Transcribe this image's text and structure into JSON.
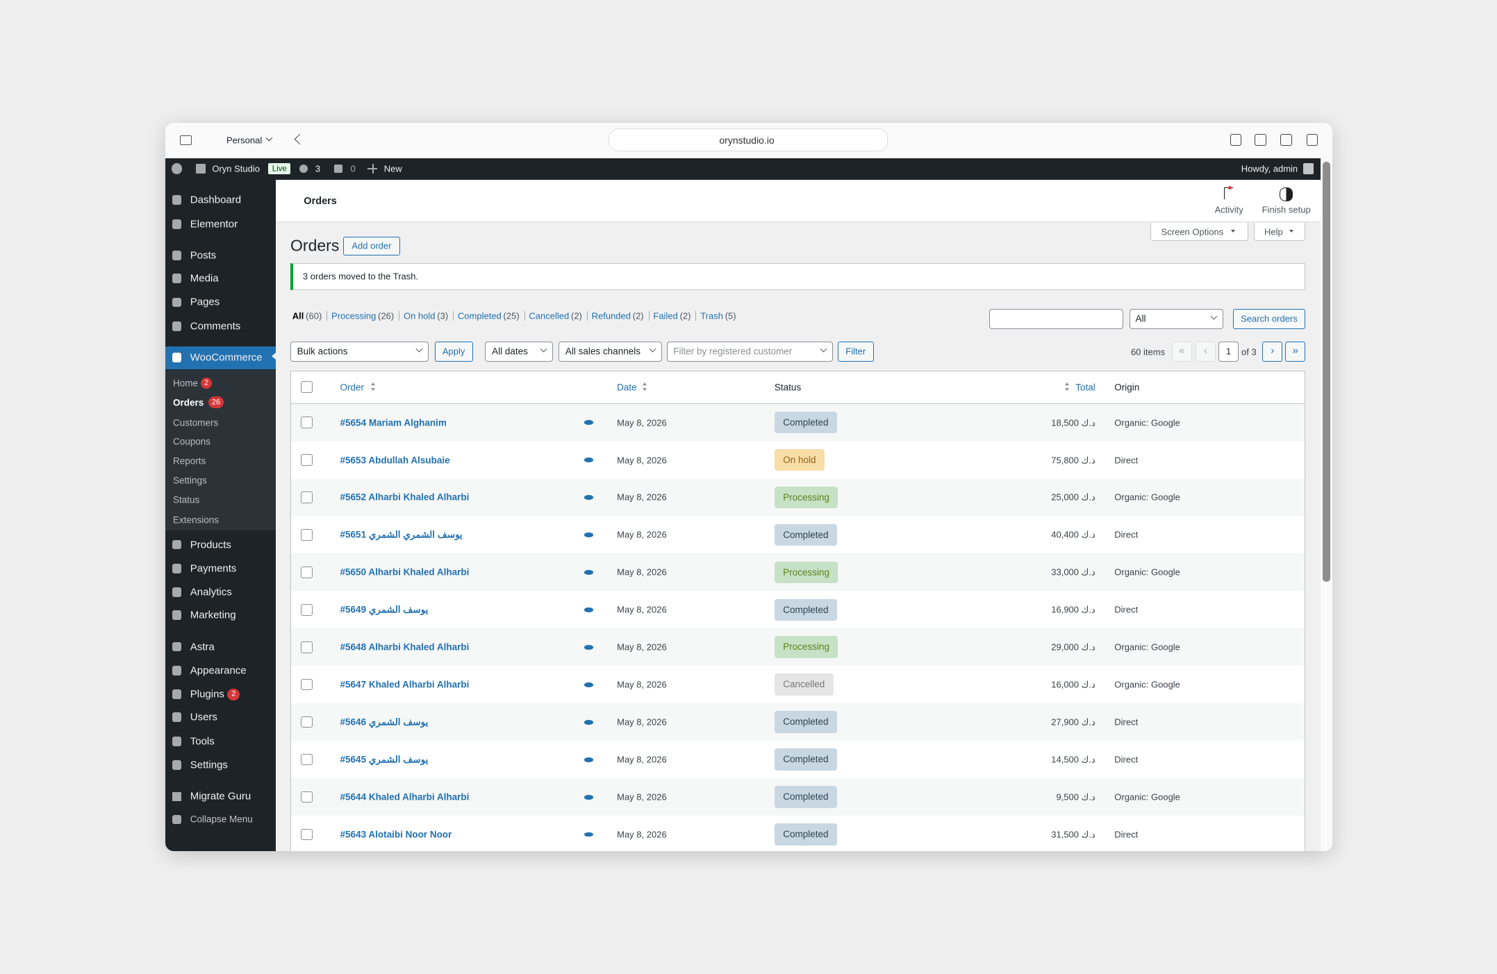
{
  "browser": {
    "profile": "Personal",
    "url": "orynstudio.io"
  },
  "admin_bar": {
    "site": "Oryn Studio",
    "live": "Live",
    "updates": "3",
    "comments": "0",
    "new": "New",
    "howdy": "Howdy, admin"
  },
  "menu": [
    {
      "label": "Dashboard"
    },
    {
      "label": "Elementor"
    },
    {
      "label": "Posts"
    },
    {
      "label": "Media"
    },
    {
      "label": "Pages"
    },
    {
      "label": "Comments"
    },
    {
      "label": "WooCommerce"
    },
    {
      "label": "Products"
    },
    {
      "label": "Payments"
    },
    {
      "label": "Analytics"
    },
    {
      "label": "Marketing"
    },
    {
      "label": "Astra"
    },
    {
      "label": "Appearance"
    },
    {
      "label": "Plugins",
      "badge": "2"
    },
    {
      "label": "Users"
    },
    {
      "label": "Tools"
    },
    {
      "label": "Settings"
    },
    {
      "label": "Migrate Guru"
    },
    {
      "label": "Collapse Menu"
    }
  ],
  "submenu": [
    {
      "label": "Home",
      "badge": "2"
    },
    {
      "label": "Orders",
      "badge": "26"
    },
    {
      "label": "Customers"
    },
    {
      "label": "Coupons"
    },
    {
      "label": "Reports"
    },
    {
      "label": "Settings"
    },
    {
      "label": "Status"
    },
    {
      "label": "Extensions"
    }
  ],
  "header": {
    "title": "Orders",
    "activity": "Activity",
    "finish": "Finish setup"
  },
  "page": {
    "title": "Orders",
    "add_order": "Add order",
    "screen_options": "Screen Options",
    "help": "Help",
    "notice": "3 orders moved to the Trash."
  },
  "views": [
    {
      "label": "All",
      "count": "(60)"
    },
    {
      "label": "Processing",
      "count": "(26)"
    },
    {
      "label": "On hold",
      "count": "(3)"
    },
    {
      "label": "Completed",
      "count": "(25)"
    },
    {
      "label": "Cancelled",
      "count": "(2)"
    },
    {
      "label": "Refunded",
      "count": "(2)"
    },
    {
      "label": "Failed",
      "count": "(2)"
    },
    {
      "label": "Trash",
      "count": "(5)"
    }
  ],
  "search": {
    "select": "All",
    "button": "Search orders"
  },
  "filters": {
    "bulk": "Bulk actions",
    "apply": "Apply",
    "dates": "All dates",
    "channels": "All sales channels",
    "customer": "Filter by registered customer",
    "filter": "Filter"
  },
  "pagination": {
    "items": "60 items",
    "first": "«",
    "prev": "‹",
    "current": "1",
    "of": "of 3",
    "next": "›",
    "last": "»"
  },
  "table": {
    "headers": {
      "order": "Order",
      "date": "Date",
      "status": "Status",
      "total": "Total",
      "origin": "Origin"
    },
    "rows": [
      {
        "order": "#5654 Mariam Alghanim",
        "date": "May 8, 2026",
        "status": {
          "label": "Completed",
          "bg": "#c8d7e1",
          "fg": "#2e4453"
        },
        "total": "18,500 د.ك",
        "origin": "Organic: Google"
      },
      {
        "order": "#5653 Abdullah Alsubaie",
        "date": "May 8, 2026",
        "status": {
          "label": "On hold",
          "bg": "#f8dda7",
          "fg": "#94660c"
        },
        "total": "75,800 د.ك",
        "origin": "Direct"
      },
      {
        "order": "#5652 Alharbi Khaled Alharbi",
        "date": "May 8, 2026",
        "status": {
          "label": "Processing",
          "bg": "#c6e1c6",
          "fg": "#5b841b"
        },
        "total": "25,000 د.ك",
        "origin": "Organic: Google"
      },
      {
        "order": "#5651 يوسف الشمري الشمري",
        "date": "May 8, 2026",
        "status": {
          "label": "Completed",
          "bg": "#c8d7e1",
          "fg": "#2e4453"
        },
        "total": "40,400 د.ك",
        "origin": "Direct"
      },
      {
        "order": "#5650 Alharbi Khaled Alharbi",
        "date": "May 8, 2026",
        "status": {
          "label": "Processing",
          "bg": "#c6e1c6",
          "fg": "#5b841b"
        },
        "total": "33,000 د.ك",
        "origin": "Organic: Google"
      },
      {
        "order": "#5649 يوسف الشمري",
        "date": "May 8, 2026",
        "status": {
          "label": "Completed",
          "bg": "#c8d7e1",
          "fg": "#2e4453"
        },
        "total": "16,900 د.ك",
        "origin": "Direct"
      },
      {
        "order": "#5648 Alharbi Khaled Alharbi",
        "date": "May 8, 2026",
        "status": {
          "label": "Processing",
          "bg": "#c6e1c6",
          "fg": "#5b841b"
        },
        "total": "29,000 د.ك",
        "origin": "Organic: Google"
      },
      {
        "order": "#5647 Khaled Alharbi Alharbi",
        "date": "May 8, 2026",
        "status": {
          "label": "Cancelled",
          "bg": "#e5e5e5",
          "fg": "#777777"
        },
        "total": "16,000 د.ك",
        "origin": "Organic: Google"
      },
      {
        "order": "#5646 يوسف الشمري",
        "date": "May 8, 2026",
        "status": {
          "label": "Completed",
          "bg": "#c8d7e1",
          "fg": "#2e4453"
        },
        "total": "27,900 د.ك",
        "origin": "Direct"
      },
      {
        "order": "#5645 يوسف الشمري",
        "date": "May 8, 2026",
        "status": {
          "label": "Completed",
          "bg": "#c8d7e1",
          "fg": "#2e4453"
        },
        "total": "14,500 د.ك",
        "origin": "Direct"
      },
      {
        "order": "#5644 Khaled Alharbi Alharbi",
        "date": "May 8, 2026",
        "status": {
          "label": "Completed",
          "bg": "#c8d7e1",
          "fg": "#2e4453"
        },
        "total": "9,500 د.ك",
        "origin": "Organic: Google"
      },
      {
        "order": "#5643 Alotaibi Noor Noor",
        "date": "May 8, 2026",
        "status": {
          "label": "Completed",
          "bg": "#c8d7e1",
          "fg": "#2e4453"
        },
        "total": "31,500 د.ك",
        "origin": "Direct"
      }
    ]
  }
}
